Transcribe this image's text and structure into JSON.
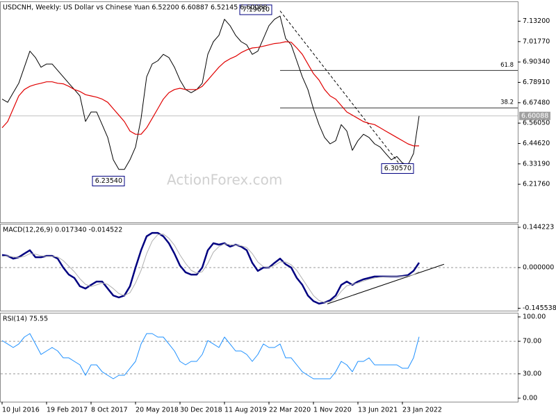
{
  "chart_data": [
    {
      "type": "line",
      "title": "USDCNH, Weekly:  US Dollar vs Chinese Yuan  6.52200 6.60887 6.52145 6.60088",
      "watermark": "ActionForex.com",
      "xlim": [
        -1.5,
        371
      ],
      "x": [
        0,
        4,
        8,
        12,
        16,
        20,
        24,
        28,
        32,
        36,
        40,
        44,
        48,
        52,
        56,
        60,
        64,
        68,
        72,
        76,
        80,
        84,
        88,
        92,
        96,
        100,
        104,
        108,
        112,
        116,
        120,
        124,
        128,
        132,
        136,
        140,
        144,
        148,
        152,
        156,
        160,
        164,
        168,
        172,
        176,
        180,
        184,
        188,
        192,
        196,
        200,
        204,
        208,
        212,
        216,
        220,
        224,
        228,
        232,
        236,
        240,
        244,
        248,
        252,
        256,
        260,
        264,
        268,
        272,
        276,
        280,
        284,
        288,
        292,
        296,
        300
      ],
      "series": [
        {
          "color": "#000000",
          "values": [
            6.695,
            6.677,
            6.731,
            6.784,
            6.874,
            6.964,
            6.928,
            6.874,
            6.892,
            6.892,
            6.856,
            6.82,
            6.784,
            6.749,
            6.713,
            6.57,
            6.623,
            6.623,
            6.552,
            6.48,
            6.355,
            6.301,
            6.301,
            6.355,
            6.426,
            6.587,
            6.82,
            6.892,
            6.91,
            6.946,
            6.928,
            6.874,
            6.802,
            6.749,
            6.731,
            6.749,
            6.784,
            6.946,
            7.017,
            7.053,
            7.143,
            7.107,
            7.053,
            7.017,
            6.999,
            6.946,
            6.964,
            7.035,
            7.107,
            7.143,
            7.161,
            7.035,
            6.999,
            6.91,
            6.82,
            6.749,
            6.641,
            6.552,
            6.48,
            6.444,
            6.462,
            6.552,
            6.516,
            6.408,
            6.462,
            6.498,
            6.48,
            6.444,
            6.426,
            6.39,
            6.355,
            6.373,
            6.337,
            6.326,
            6.39,
            6.60088
          ]
        },
        {
          "color": "#e00000",
          "values": [
            6.534,
            6.569,
            6.641,
            6.713,
            6.749,
            6.767,
            6.777,
            6.784,
            6.792,
            6.792,
            6.784,
            6.781,
            6.767,
            6.749,
            6.738,
            6.72,
            6.713,
            6.706,
            6.695,
            6.677,
            6.641,
            6.605,
            6.569,
            6.516,
            6.498,
            6.498,
            6.534,
            6.587,
            6.641,
            6.695,
            6.731,
            6.749,
            6.756,
            6.749,
            6.749,
            6.749,
            6.767,
            6.802,
            6.838,
            6.874,
            6.903,
            6.921,
            6.935,
            6.956,
            6.971,
            6.982,
            6.985,
            6.992,
            6.999,
            7.007,
            7.01,
            7.017,
            7.014,
            6.982,
            6.946,
            6.892,
            6.838,
            6.802,
            6.749,
            6.713,
            6.695,
            6.659,
            6.623,
            6.605,
            6.587,
            6.569,
            6.559,
            6.552,
            6.534,
            6.516,
            6.498,
            6.48,
            6.462,
            6.444,
            6.433,
            6.433
          ]
        }
      ],
      "ylim": [
        6.0037,
        7.2431
      ],
      "yticks": [
        {
          "value": 7.132,
          "label": "7.13200"
        },
        {
          "value": 7.0177,
          "label": "7.01770"
        },
        {
          "value": 6.9034,
          "label": "6.90340"
        },
        {
          "value": 6.7891,
          "label": "6.78910"
        },
        {
          "value": 6.6748,
          "label": "6.67480"
        },
        {
          "value": 6.5605,
          "label": "6.56050"
        },
        {
          "value": 6.4462,
          "label": "6.44620"
        },
        {
          "value": 6.3319,
          "label": "6.33190"
        },
        {
          "value": 6.2176,
          "label": "6.21760"
        }
      ],
      "levels": [
        {
          "value": 6.856,
          "label": "61.8",
          "x": 200
        },
        {
          "value": 6.646,
          "label": "38.2",
          "x": 200
        }
      ],
      "trendlines": [
        {
          "x": [
            200,
            288
          ],
          "values": [
            7.19,
            6.31
          ],
          "dashed": true
        }
      ],
      "annotations": [
        {
          "x": 190,
          "value": 7.1961,
          "label": "7.19610"
        },
        {
          "x": 84,
          "value": 6.2354,
          "label": "6.23540"
        },
        {
          "x": 292,
          "value": 6.3057,
          "label": "6.30570"
        }
      ],
      "last_price": {
        "value": 6.60088,
        "label": "6.60088"
      }
    },
    {
      "type": "line",
      "title": "MACD(12,26,9) 0.017340 -0.014522",
      "xlim": [
        -1.5,
        371
      ],
      "x": [
        0,
        4,
        8,
        12,
        16,
        20,
        24,
        28,
        32,
        36,
        40,
        44,
        48,
        52,
        56,
        60,
        64,
        68,
        72,
        76,
        80,
        84,
        88,
        92,
        96,
        100,
        104,
        108,
        112,
        116,
        120,
        124,
        128,
        132,
        136,
        140,
        144,
        148,
        152,
        156,
        160,
        164,
        168,
        172,
        176,
        180,
        184,
        188,
        192,
        196,
        200,
        204,
        208,
        212,
        216,
        220,
        224,
        228,
        232,
        236,
        240,
        244,
        248,
        252,
        256,
        260,
        264,
        268,
        272,
        276,
        280,
        284,
        288,
        292,
        296,
        300
      ],
      "series": [
        {
          "color": "#000080",
          "values": [
            0.045,
            0.042,
            0.032,
            0.037,
            0.05,
            0.062,
            0.037,
            0.037,
            0.042,
            0.042,
            0.032,
            0,
            -0.025,
            -0.037,
            -0.067,
            -0.075,
            -0.062,
            -0.05,
            -0.05,
            -0.075,
            -0.1,
            -0.107,
            -0.1,
            -0.067,
            0,
            0.062,
            0.112,
            0.124,
            0.124,
            0.112,
            0.087,
            0.05,
            0.007,
            -0.017,
            -0.025,
            -0.025,
            0,
            0.062,
            0.087,
            0.082,
            0.087,
            0.075,
            0.082,
            0.075,
            0.062,
            0.017,
            -0.012,
            0,
            0,
            0.017,
            0.032,
            0.012,
            0,
            -0.037,
            -0.062,
            -0.1,
            -0.12,
            -0.129,
            -0.125,
            -0.117,
            -0.1,
            -0.062,
            -0.05,
            -0.062,
            -0.05,
            -0.042,
            -0.037,
            -0.032,
            -0.032,
            -0.032,
            -0.032,
            -0.032,
            -0.03,
            -0.027,
            -0.012,
            0.01734
          ]
        },
        {
          "color": "#b0b0b0",
          "values": [
            0.04,
            0.042,
            0.038,
            0.036,
            0.04,
            0.05,
            0.048,
            0.042,
            0.04,
            0.04,
            0.038,
            0.025,
            0.005,
            -0.015,
            -0.04,
            -0.06,
            -0.068,
            -0.062,
            -0.055,
            -0.06,
            -0.075,
            -0.093,
            -0.1,
            -0.09,
            -0.055,
            -0.01,
            0.05,
            0.095,
            0.118,
            0.12,
            0.105,
            0.08,
            0.045,
            0.015,
            -0.01,
            -0.02,
            -0.015,
            0.015,
            0.055,
            0.075,
            0.085,
            0.082,
            0.08,
            0.078,
            0.072,
            0.05,
            0.02,
            0.003,
            0.0,
            0.008,
            0.02,
            0.02,
            0.01,
            -0.01,
            -0.04,
            -0.07,
            -0.1,
            -0.118,
            -0.125,
            -0.122,
            -0.11,
            -0.085,
            -0.065,
            -0.06,
            -0.055,
            -0.048,
            -0.042,
            -0.037,
            -0.034,
            -0.033,
            -0.032,
            -0.032,
            -0.031,
            -0.03,
            -0.025,
            -0.014522
          ]
        }
      ],
      "ylim": [
        -0.1542,
        0.1567
      ],
      "yticks": [
        {
          "value": 0.144223,
          "label": "0.144223"
        },
        {
          "value": 0,
          "label": "0.000000"
        },
        {
          "value": -0.145538,
          "label": "-0.145538"
        }
      ],
      "levels": [
        0
      ],
      "trendlines": [
        {
          "x": [
            234,
            318
          ],
          "values": [
            -0.13,
            0.012
          ]
        }
      ]
    },
    {
      "type": "line",
      "title": "RSI(14) 75.55",
      "xlim": [
        -1.5,
        371
      ],
      "x": [
        0,
        4,
        8,
        12,
        16,
        20,
        24,
        28,
        32,
        36,
        40,
        44,
        48,
        52,
        56,
        60,
        64,
        68,
        72,
        76,
        80,
        84,
        88,
        92,
        96,
        100,
        104,
        108,
        112,
        116,
        120,
        124,
        128,
        132,
        136,
        140,
        144,
        148,
        152,
        156,
        160,
        164,
        168,
        172,
        176,
        180,
        184,
        188,
        192,
        196,
        200,
        204,
        208,
        212,
        216,
        220,
        224,
        228,
        232,
        236,
        240,
        244,
        248,
        252,
        256,
        260,
        264,
        268,
        272,
        276,
        280,
        284,
        288,
        292,
        296,
        300
      ],
      "series": [
        {
          "color": "#1e90ff",
          "values": [
            70.9,
            66.7,
            62.4,
            66.7,
            75.2,
            79.5,
            66.7,
            53.8,
            58.1,
            62.4,
            58.1,
            49.6,
            49.6,
            45.3,
            41.0,
            28.2,
            41.0,
            41.0,
            32.5,
            28.2,
            23.9,
            28.2,
            28.2,
            36.8,
            45.3,
            66.7,
            79.5,
            79.5,
            75.2,
            75.2,
            66.7,
            58.1,
            45.3,
            41.0,
            45.3,
            45.3,
            53.8,
            70.9,
            66.7,
            62.4,
            75.2,
            66.7,
            58.1,
            58.1,
            53.8,
            45.3,
            53.8,
            66.7,
            62.4,
            62.4,
            66.7,
            49.6,
            49.6,
            41.0,
            32.5,
            28.2,
            23.9,
            23.9,
            23.9,
            23.9,
            32.5,
            45.3,
            41.0,
            32.5,
            45.3,
            45.3,
            49.6,
            41.0,
            41.0,
            41.0,
            41.0,
            41.0,
            36.8,
            36.8,
            49.6,
            75.55
          ]
        }
      ],
      "ylim": [
        -4.3,
        105.1
      ],
      "yticks": [
        {
          "value": 100,
          "label": "100.00"
        },
        {
          "value": 70,
          "label": "70.00"
        },
        {
          "value": 30,
          "label": "30.00"
        },
        {
          "value": 0,
          "label": "0.00"
        }
      ],
      "levels": [
        70,
        30
      ],
      "xticks": [
        {
          "value": 0,
          "label": "10 Jul 2016"
        },
        {
          "value": 32,
          "label": "19 Feb 2017"
        },
        {
          "value": 64,
          "label": "8 Oct 2017"
        },
        {
          "value": 96,
          "label": "20 May 2018"
        },
        {
          "value": 128,
          "label": "30 Dec 2018"
        },
        {
          "value": 160,
          "label": "11 Aug 2019"
        },
        {
          "value": 192,
          "label": "22 Mar 2020"
        },
        {
          "value": 224,
          "label": "1 Nov 2020"
        },
        {
          "value": 256,
          "label": "13 Jun 2021"
        },
        {
          "value": 288,
          "label": "23 Jan 2022"
        }
      ]
    }
  ]
}
